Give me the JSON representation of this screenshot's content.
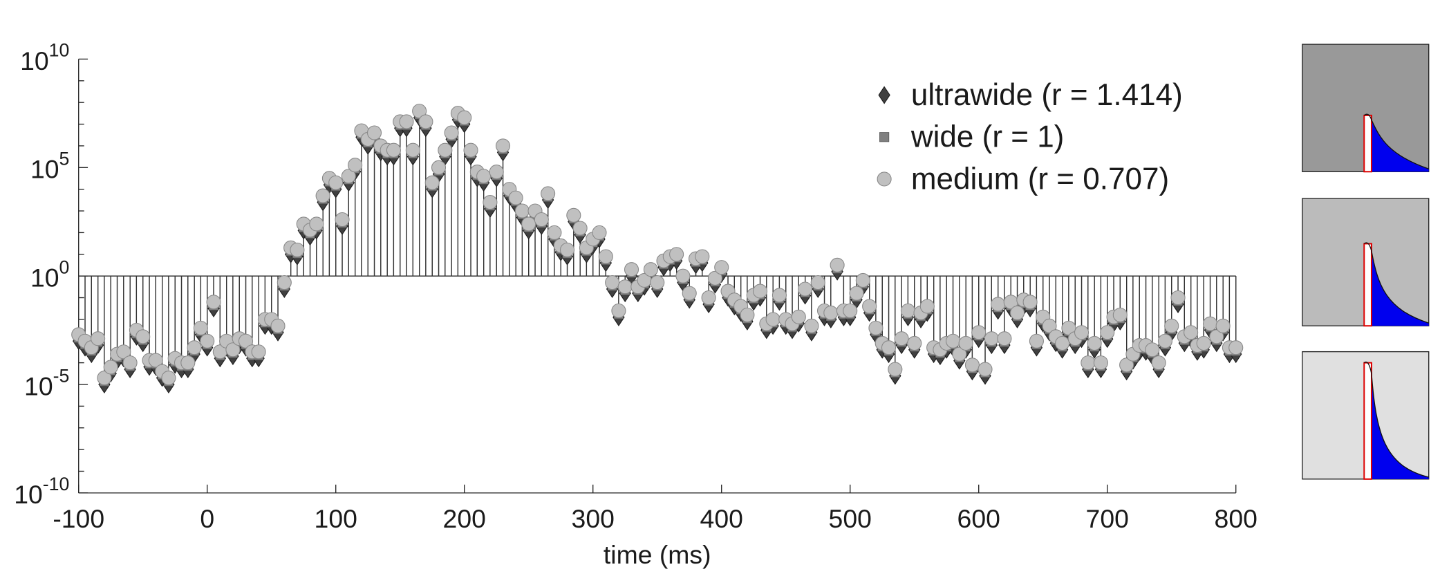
{
  "chart_data": {
    "type": "stem",
    "x_label": "time (ms)",
    "log_y": true,
    "xlim": [
      -100,
      800
    ],
    "xticks": [
      -100,
      0,
      100,
      200,
      300,
      400,
      500,
      600,
      700,
      800
    ],
    "ylim": [
      1e-10,
      10000000000.0
    ],
    "yticks": [
      {
        "value": 1e-10,
        "label": "10^-10"
      },
      {
        "value": 1e-05,
        "label": "10^-5"
      },
      {
        "value": 1,
        "label": "10^0"
      },
      {
        "value": 100000.0,
        "label": "10^5"
      },
      {
        "value": 10000000000.0,
        "label": "10^10"
      }
    ],
    "yminorticks": [
      1e-09,
      1e-08,
      1e-07,
      1e-06,
      0.0001,
      0.001,
      0.01,
      0.1,
      10,
      100,
      1000,
      10000,
      1000000.0,
      10000000.0,
      100000000.0,
      1000000000.0
    ],
    "baseline": 1,
    "legend": "northeast",
    "x": [
      -100,
      -95,
      -90,
      -85,
      -80,
      -75,
      -70,
      -65,
      -60,
      -55,
      -50,
      -45,
      -40,
      -35,
      -30,
      -25,
      -20,
      -15,
      -10,
      -5,
      0,
      5,
      10,
      15,
      20,
      25,
      30,
      35,
      40,
      45,
      50,
      55,
      60,
      65,
      70,
      75,
      80,
      85,
      90,
      95,
      100,
      105,
      110,
      115,
      120,
      125,
      130,
      135,
      140,
      145,
      150,
      155,
      160,
      165,
      170,
      175,
      180,
      185,
      190,
      195,
      200,
      205,
      210,
      215,
      220,
      225,
      230,
      235,
      240,
      245,
      250,
      255,
      260,
      265,
      270,
      275,
      280,
      285,
      290,
      295,
      300,
      305,
      310,
      315,
      320,
      325,
      330,
      335,
      340,
      345,
      350,
      355,
      360,
      365,
      370,
      375,
      380,
      385,
      390,
      395,
      400,
      405,
      410,
      415,
      420,
      425,
      430,
      435,
      440,
      445,
      450,
      455,
      460,
      465,
      470,
      475,
      480,
      485,
      490,
      495,
      500,
      505,
      510,
      515,
      520,
      525,
      530,
      535,
      540,
      545,
      550,
      555,
      560,
      565,
      570,
      575,
      580,
      585,
      590,
      595,
      600,
      605,
      610,
      615,
      620,
      625,
      630,
      635,
      640,
      645,
      650,
      655,
      660,
      665,
      670,
      675,
      680,
      685,
      690,
      695,
      700,
      705,
      710,
      715,
      720,
      725,
      730,
      735,
      740,
      745,
      750,
      755,
      760,
      765,
      770,
      775,
      780,
      785,
      790,
      795,
      800
    ],
    "series": [
      {
        "name": "ultrawide (r = 1.414)",
        "marker": "diamond",
        "color": "#404040",
        "values": [
          0.001,
          0.0005,
          0.00025,
          0.00065,
          1e-05,
          3.2e-05,
          0.000125,
          0.00016,
          5e-05,
          0.0016,
          0.0008,
          6.5e-05,
          6.5e-05,
          2e-05,
          1e-05,
          8e-05,
          5e-05,
          5e-05,
          0.00025,
          0.002,
          0.0005,
          0.032,
          0.00016,
          0.0005,
          0.0002,
          0.00065,
          0.0005,
          0.00016,
          0.00016,
          0.005,
          0.005,
          0.0025,
          0.25,
          10,
          8,
          125,
          65,
          125,
          2500,
          16000,
          10000,
          200,
          20000,
          65000,
          2500000.0,
          1000000.0,
          2000000.0,
          500000.0,
          320000.0,
          320000.0,
          6500000.0,
          6500000.0,
          320000.0,
          20000000.0,
          6500000.0,
          10000.0,
          50000.0,
          320000.0,
          2000000.0,
          16000000.0,
          10000000.0,
          320000.0,
          32000.0,
          20000.0,
          1250,
          32000.0,
          500000.0,
          5000,
          2000,
          500,
          125,
          500,
          200,
          3200,
          50,
          12.5,
          8,
          320,
          80,
          10,
          25,
          50,
          4,
          0.25,
          0.0125,
          0.16,
          1,
          0.16,
          0.32,
          1,
          0.25,
          2.5,
          4,
          5,
          0.5,
          0.08,
          3.2,
          4,
          0.05,
          0.4,
          1.25,
          0.1,
          0.04,
          0.02,
          0.008,
          0.065,
          0.1,
          0.0032,
          0.005,
          0.065,
          0.005,
          0.0032,
          0.0065,
          0.125,
          0.0025,
          0.25,
          0.0125,
          0.01,
          1.6,
          0.0125,
          0.0125,
          0.08,
          0.32,
          0.02,
          0.002,
          0.0004,
          0.00025,
          2.5e-05,
          0.00065,
          0.0125,
          0.0004,
          0.01,
          0.02,
          0.00025,
          0.0002,
          0.0004,
          0.0005,
          0.000125,
          0.0004,
          4e-05,
          0.00125,
          2.5e-05,
          0.00065,
          0.025,
          0.00065,
          0.032,
          0.01,
          0.04,
          0.032,
          0.0005,
          0.0065,
          0.0025,
          0.0008,
          0.0004,
          0.002,
          0.00065,
          0.00125,
          5e-05,
          0.0004,
          5e-05,
          0.00125,
          0.0065,
          0.008,
          4e-05,
          0.000125,
          0.00032,
          0.00032,
          0.0002,
          5e-05,
          0.0005,
          0.0025,
          0.05,
          0.0008,
          0.00125,
          0.00032,
          0.0004,
          0.0032,
          0.0008,
          0.0025,
          0.00025,
          0.00025
        ]
      },
      {
        "name": "wide (r = 1)",
        "marker": "square",
        "color": "#808080",
        "values": [
          0.0014,
          0.0007,
          0.00035,
          0.0009,
          1.4e-05,
          4.4e-05,
          0.000175,
          0.00022,
          7e-05,
          0.0022,
          0.0011,
          9e-05,
          9e-05,
          2.8e-05,
          1.4e-05,
          0.00011,
          7e-05,
          7e-05,
          0.00035,
          0.0028,
          0.0007,
          0.044,
          0.00022,
          0.0007,
          0.00028,
          0.0009,
          0.0007,
          0.00022,
          0.00022,
          0.007,
          0.007,
          0.0035,
          0.35,
          14,
          11,
          175,
          90,
          175,
          3500,
          22000,
          14000,
          280,
          28000,
          90000,
          3500000.0,
          1400000.0,
          2800000.0,
          700000.0,
          440000.0,
          440000.0,
          9000000.0,
          9000000.0,
          440000.0,
          28000000.0,
          9000000.0,
          14000.0,
          70000.0,
          440000.0,
          2800000.0,
          22000000.0,
          14000000.0,
          440000.0,
          44000.0,
          28000.0,
          1750,
          44000.0,
          700000.0,
          7000,
          2800,
          700,
          175,
          700,
          280,
          4400,
          70,
          17.5,
          11,
          440,
          110,
          14,
          35,
          70,
          5.5,
          0.35,
          0.0175,
          0.22,
          1.4,
          0.22,
          0.44,
          1.4,
          0.35,
          3.5,
          5.5,
          7,
          0.7,
          0.11,
          4.4,
          5.5,
          0.07,
          0.55,
          1.75,
          0.14,
          0.055,
          0.028,
          0.011,
          0.09,
          0.14,
          0.0044,
          0.007,
          0.09,
          0.007,
          0.0044,
          0.009,
          0.175,
          0.0035,
          0.35,
          0.0175,
          0.014,
          2.2,
          0.0175,
          0.0175,
          0.11,
          0.44,
          0.028,
          0.0028,
          0.00055,
          0.00035,
          3.5e-05,
          0.0009,
          0.0175,
          0.00055,
          0.014,
          0.028,
          0.00035,
          0.00028,
          0.00055,
          0.0007,
          0.000175,
          0.00055,
          5.5e-05,
          0.00175,
          3.5e-05,
          0.0009,
          0.035,
          0.0009,
          0.044,
          0.014,
          0.055,
          0.044,
          0.0007,
          0.009,
          0.0035,
          0.0011,
          0.00055,
          0.0028,
          0.0009,
          0.00175,
          7e-05,
          0.00055,
          7e-05,
          0.00175,
          0.009,
          0.011,
          5.5e-05,
          0.000175,
          0.00044,
          0.00044,
          0.00028,
          7e-05,
          0.0007,
          0.0035,
          0.07,
          0.0011,
          0.00175,
          0.00044,
          0.00055,
          0.0044,
          0.0011,
          0.0035,
          0.00035,
          0.00035
        ]
      },
      {
        "name": "medium (r = 0.707)",
        "marker": "circle",
        "color": "#c0c0c0",
        "values": [
          0.002,
          0.001,
          0.0005,
          0.0013,
          2e-05,
          6.3e-05,
          0.00025,
          0.00032,
          0.0001,
          0.0032,
          0.0016,
          0.00013,
          0.00013,
          4e-05,
          2e-05,
          0.00016,
          0.0001,
          0.0001,
          0.0005,
          0.004,
          0.001,
          0.063,
          0.00032,
          0.001,
          0.0004,
          0.0013,
          0.001,
          0.00032,
          0.00032,
          0.01,
          0.01,
          0.005,
          0.5,
          20,
          16,
          250,
          130,
          250,
          5000,
          32000,
          20000,
          400,
          40000,
          130000,
          5000000.0,
          2000000.0,
          4000000.0,
          1000000.0,
          630000.0,
          630000.0,
          13000000.0,
          13000000.0,
          630000.0,
          40000000.0,
          13000000.0,
          20000.0,
          100000.0,
          630000.0,
          4000000.0,
          32000000.0,
          20000000.0,
          630000.0,
          63000.0,
          40000.0,
          2500,
          63000.0,
          1000000.0,
          10000.0,
          4000,
          1000,
          250,
          1000,
          400,
          6300,
          100,
          25,
          16,
          630,
          160,
          20,
          50,
          100,
          7.9,
          0.5,
          0.025,
          0.32,
          2,
          0.32,
          0.63,
          2,
          0.5,
          5,
          7.9,
          10,
          1,
          0.16,
          6.3,
          7.9,
          0.1,
          0.79,
          2.5,
          0.2,
          0.079,
          0.04,
          0.016,
          0.13,
          0.2,
          0.0063,
          0.01,
          0.13,
          0.01,
          0.0063,
          0.013,
          0.25,
          0.005,
          0.5,
          0.025,
          0.02,
          3.2,
          0.025,
          0.025,
          0.16,
          0.63,
          0.04,
          0.004,
          0.00079,
          0.0005,
          5e-05,
          0.0013,
          0.025,
          0.00079,
          0.02,
          0.04,
          0.0005,
          0.0004,
          0.00079,
          0.001,
          0.00025,
          0.00079,
          7.9e-05,
          0.0025,
          5e-05,
          0.0013,
          0.05,
          0.0013,
          0.063,
          0.02,
          0.079,
          0.063,
          0.001,
          0.013,
          0.005,
          0.0016,
          0.00079,
          0.004,
          0.0013,
          0.0025,
          0.0001,
          0.00079,
          0.0001,
          0.0025,
          0.013,
          0.016,
          7.9e-05,
          0.00025,
          0.00063,
          0.00063,
          0.0004,
          0.0001,
          0.001,
          0.005,
          0.1,
          0.0016,
          0.0025,
          0.00063,
          0.00079,
          0.0063,
          0.0016,
          0.005,
          0.0005,
          0.0005
        ]
      }
    ]
  }
}
